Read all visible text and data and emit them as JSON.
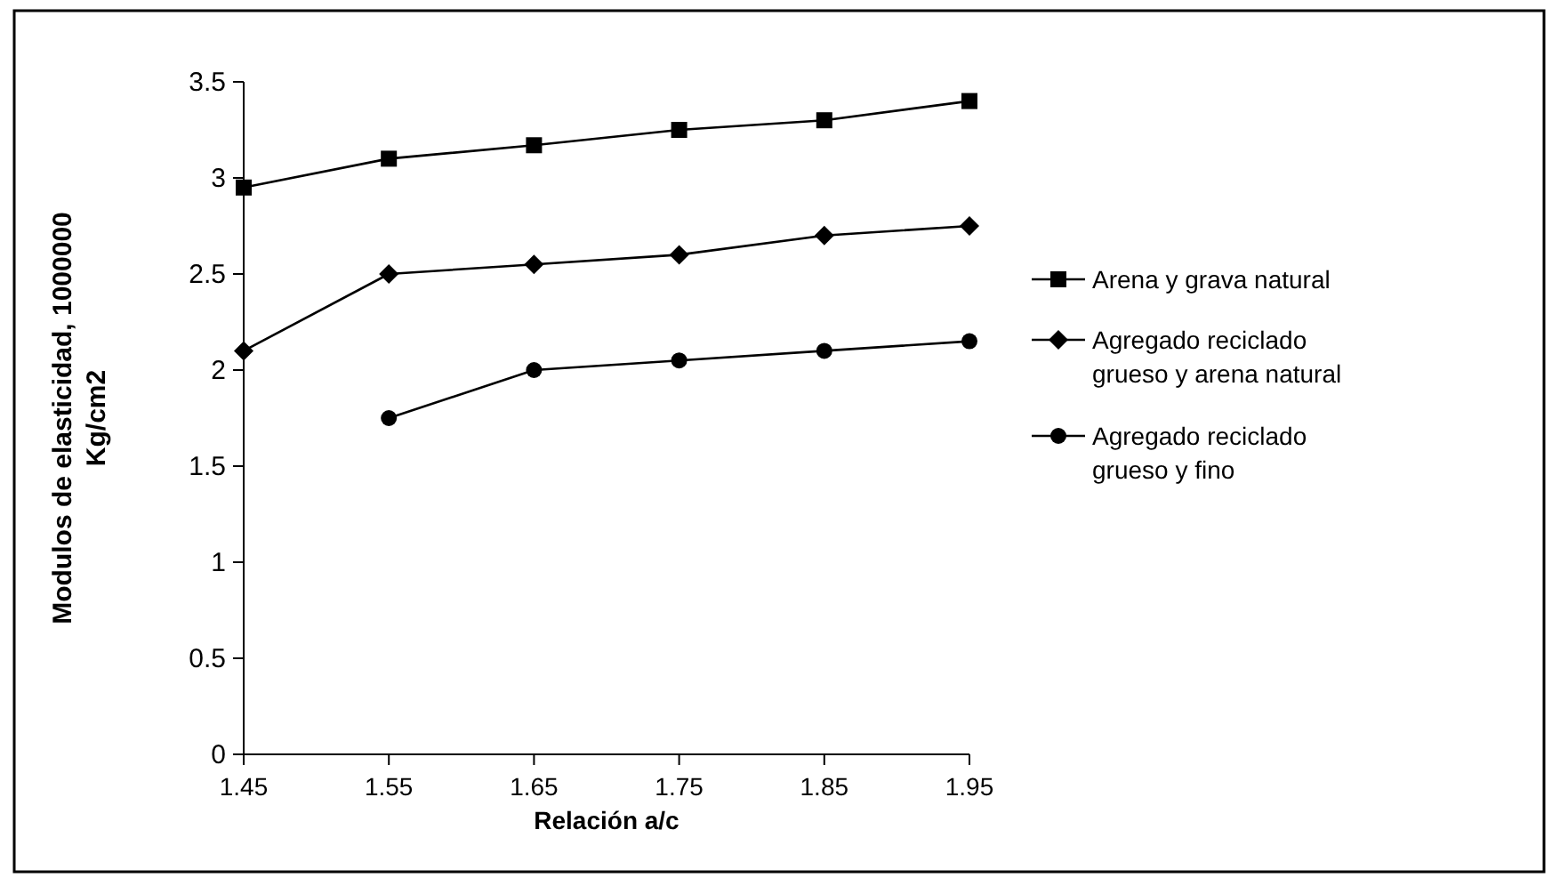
{
  "chart_data": {
    "type": "line",
    "xlabel": "Relación a/c",
    "ylabel": "Modulos de elasticidad, 1000000 Kg/cm2",
    "x": [
      1.45,
      1.55,
      1.65,
      1.75,
      1.85,
      1.95
    ],
    "xlim": [
      1.45,
      1.95
    ],
    "xticks": [
      1.45,
      1.55,
      1.65,
      1.75,
      1.85,
      1.95
    ],
    "ylim": [
      0,
      3.5
    ],
    "yticks": [
      0,
      0.5,
      1,
      1.5,
      2,
      2.5,
      3,
      3.5
    ],
    "grid": false,
    "legend": "right",
    "line_style": "solid",
    "series": [
      {
        "name": "Arena y grava natural",
        "color": "#000000",
        "marker": "square",
        "values": [
          2.95,
          3.1,
          3.17,
          3.25,
          3.3,
          3.4
        ]
      },
      {
        "name": "Agregado reciclado grueso y arena natural",
        "color": "#000000",
        "marker": "diamond",
        "values": [
          2.1,
          2.5,
          2.55,
          2.6,
          2.7,
          2.75
        ]
      },
      {
        "name": "Agregado reciclado grueso y fino",
        "color": "#000000",
        "marker": "circle",
        "values": [
          null,
          1.75,
          2.0,
          2.05,
          2.1,
          2.15
        ]
      }
    ]
  }
}
